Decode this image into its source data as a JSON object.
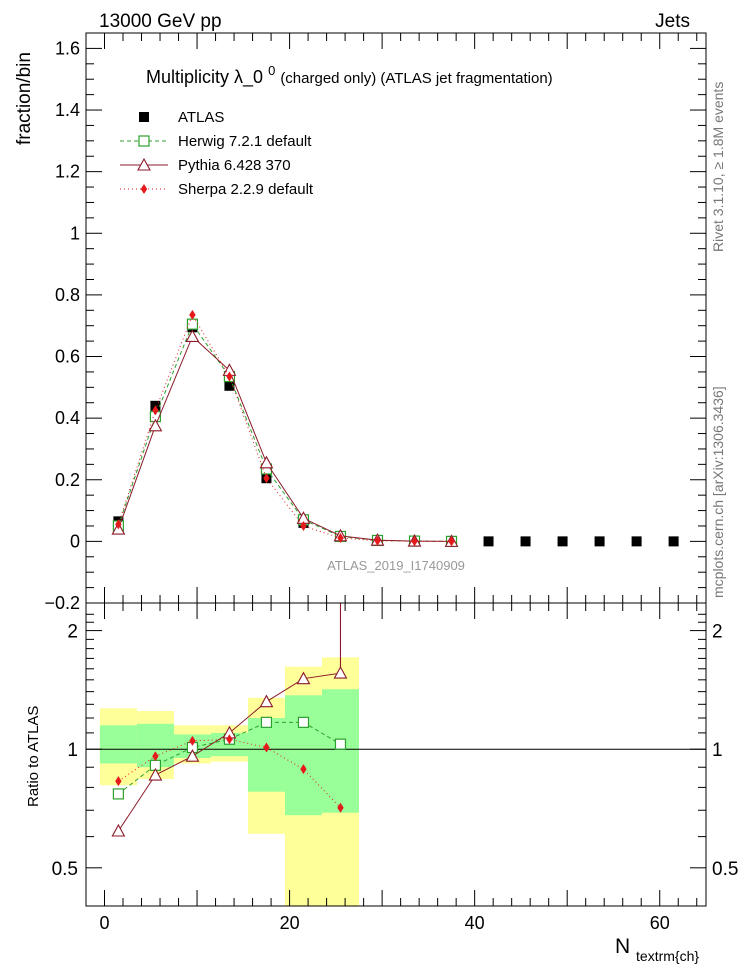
{
  "header": {
    "left": "13000 GeV pp",
    "right": "Jets"
  },
  "side_labels": {
    "rivet": "Rivet 3.1.10, ≥ 1.8M events",
    "mcplots": "mcplots.cern.ch [arXiv:1306.3436]"
  },
  "title": {
    "main": "Multiplicity  λ_0",
    "sup": "0",
    "sub": " (charged only) (ATLAS jet fragmentation)"
  },
  "analysis_id": "ATLAS_2019_I1740909",
  "chart_data": [
    {
      "type": "scatter",
      "name": "main",
      "ylabel": "fraction/bin",
      "xlim": [
        -2,
        65
      ],
      "ylim": [
        -0.2,
        1.65
      ],
      "yticks": [
        -0.2,
        0,
        0.2,
        0.4,
        0.6,
        0.8,
        1,
        1.2,
        1.4,
        1.6
      ],
      "ytick_labels": [
        "−0.2",
        "0",
        "0.2",
        "0.4",
        "0.6",
        "0.8",
        "1",
        "1.2",
        "1.4",
        "1.6"
      ],
      "x": [
        1.5,
        5.5,
        9.5,
        13.5,
        17.5,
        21.5,
        25.5,
        29.5,
        33.5,
        37.5,
        41.5,
        45.5,
        49.5,
        53.5,
        57.5,
        61.5
      ],
      "series": [
        {
          "name": "ATLAS",
          "color": "#000000",
          "marker": "square",
          "values": [
            0.065,
            0.44,
            0.695,
            0.505,
            0.205,
            0.06,
            0.015,
            0.003,
            0.001,
            0.0,
            0.0,
            0.0,
            0.0,
            0.0,
            0.0,
            0.0
          ]
        },
        {
          "name": "Herwig 7.2.1 default",
          "color": "#2ca02c",
          "marker": "open-square",
          "dash": "4,3",
          "values": [
            0.05,
            0.405,
            0.705,
            0.535,
            0.235,
            0.07,
            0.016,
            0.003,
            0.001,
            0.0
          ]
        },
        {
          "name": "Pythia 6.428 370",
          "color": "#8b1a2b",
          "marker": "open-triangle",
          "dash": "",
          "values": [
            0.04,
            0.375,
            0.665,
            0.555,
            0.255,
            0.075,
            0.018,
            0.004,
            0.001,
            0.0
          ]
        },
        {
          "name": "Sherpa 2.2.9 default",
          "color": "#e41a1c",
          "marker": "diamond",
          "dash": "1,3",
          "values": [
            0.055,
            0.425,
            0.735,
            0.535,
            0.205,
            0.05,
            0.011,
            0.002,
            0.0005,
            0.0
          ]
        }
      ]
    },
    {
      "type": "scatter",
      "name": "ratio",
      "ylabel": "Ratio to ATLAS",
      "xlabel": "N",
      "xlabel_sub": "textrm{ch}",
      "xlim": [
        -2,
        65
      ],
      "ylim": [
        0.4,
        2.35
      ],
      "yscale": "log",
      "yticks": [
        0.5,
        1,
        2
      ],
      "ytick_labels": [
        "0.5",
        "1",
        "2"
      ],
      "xticks": [
        0,
        20,
        40,
        60
      ],
      "xtick_labels": [
        "0",
        "20",
        "40",
        "60"
      ],
      "bands": {
        "edges": [
          -0.5,
          3.5,
          7.5,
          11.5,
          15.5,
          19.5,
          23.5,
          27.5
        ],
        "yellow_lo": [
          0.81,
          0.84,
          0.92,
          0.93,
          0.61,
          0.34,
          0.32
        ],
        "yellow_hi": [
          1.27,
          1.25,
          1.15,
          1.15,
          1.35,
          1.62,
          1.71
        ],
        "green_lo": [
          0.92,
          0.9,
          0.95,
          0.96,
          0.78,
          0.68,
          0.69
        ],
        "green_hi": [
          1.15,
          1.16,
          1.09,
          1.1,
          1.2,
          1.37,
          1.42
        ]
      },
      "x": [
        1.5,
        5.5,
        9.5,
        13.5,
        17.5,
        21.5,
        25.5
      ],
      "series": [
        {
          "name": "Herwig 7.2.1 default",
          "color": "#2ca02c",
          "marker": "open-square",
          "dash": "4,3",
          "values": [
            0.77,
            0.91,
            1.01,
            1.06,
            1.17,
            1.17,
            1.03
          ]
        },
        {
          "name": "Pythia 6.428 370",
          "color": "#8b1a2b",
          "marker": "open-triangle",
          "dash": "",
          "values": [
            0.62,
            0.86,
            0.96,
            1.1,
            1.32,
            1.51,
            1.56
          ]
        },
        {
          "name": "Sherpa 2.2.9 default",
          "color": "#e41a1c",
          "marker": "diamond",
          "dash": "1,3",
          "values": [
            0.83,
            0.96,
            1.05,
            1.06,
            1.01,
            0.89,
            0.71
          ]
        }
      ]
    }
  ]
}
